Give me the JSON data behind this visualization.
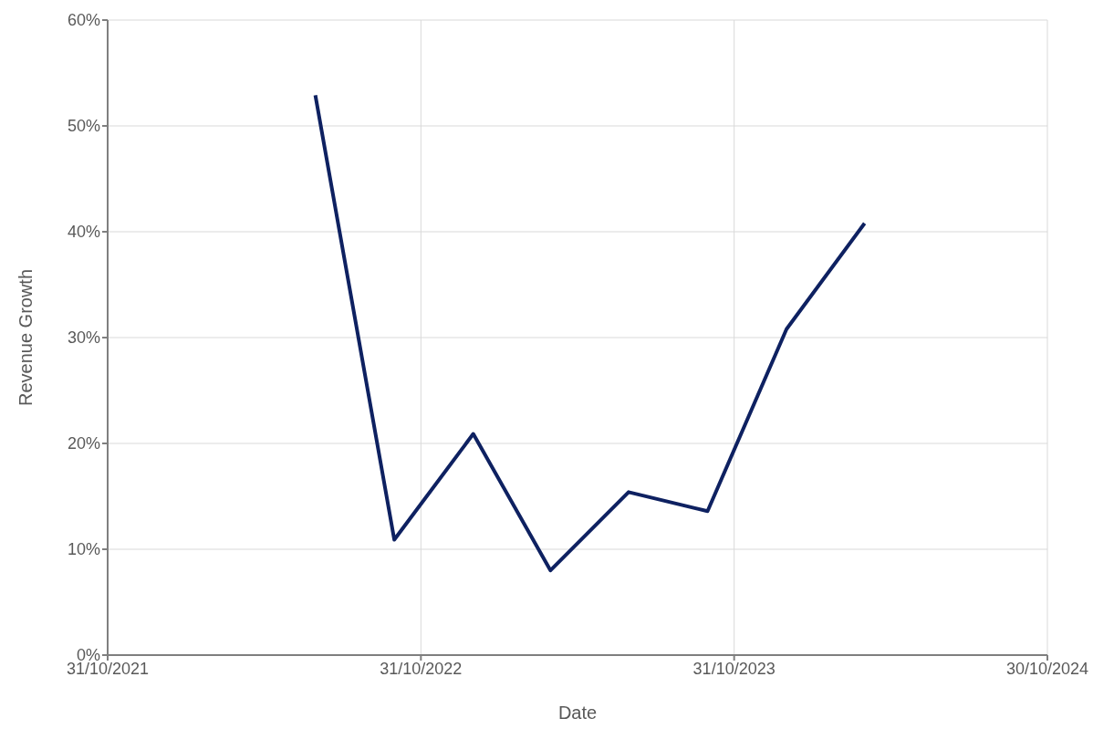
{
  "chart_data": {
    "type": "line",
    "xlabel": "Date",
    "ylabel": "Revenue Growth",
    "x": [
      "2022-06-30",
      "2022-09-30",
      "2022-12-31",
      "2023-03-31",
      "2023-06-30",
      "2023-09-30",
      "2023-12-31",
      "2024-03-31"
    ],
    "series": [
      {
        "color": "#0e2161",
        "values": [
          52.9,
          10.9,
          20.9,
          8.0,
          15.4,
          13.6,
          30.8,
          40.8
        ]
      }
    ],
    "xlim": [
      "2021-10-31",
      "2024-10-30"
    ],
    "xticks": [
      {
        "value": "2021-10-31",
        "label": "31/10/2021"
      },
      {
        "value": "2022-10-31",
        "label": "31/10/2022"
      },
      {
        "value": "2023-10-31",
        "label": "31/10/2023"
      },
      {
        "value": "2024-10-30",
        "label": "30/10/2024"
      }
    ],
    "ylim": [
      0,
      60
    ],
    "yticks": [
      {
        "value": 0,
        "label": "0%"
      },
      {
        "value": 10,
        "label": "10%"
      },
      {
        "value": 20,
        "label": "20%"
      },
      {
        "value": 30,
        "label": "30%"
      },
      {
        "value": 40,
        "label": "40%"
      },
      {
        "value": 50,
        "label": "50%"
      },
      {
        "value": 60,
        "label": "60%"
      }
    ],
    "grid": true,
    "marker": "none",
    "line_style": "solid",
    "legend": false
  }
}
